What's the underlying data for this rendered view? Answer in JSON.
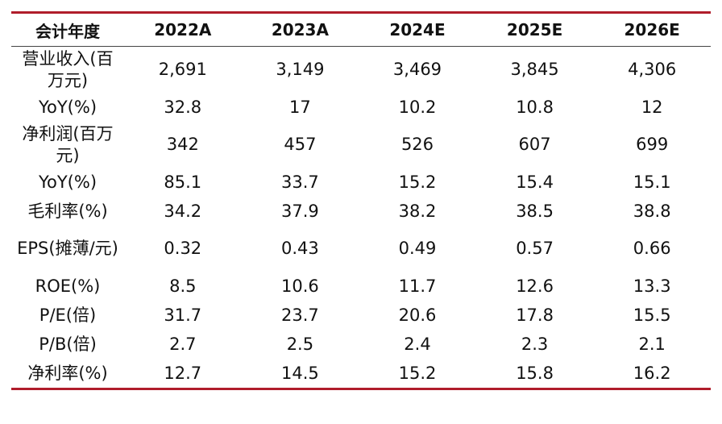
{
  "table": {
    "headers": [
      "会计年度",
      "2022A",
      "2023A",
      "2024E",
      "2025E",
      "2026E"
    ],
    "rows": [
      {
        "label": "营业收入(百万元)",
        "values": [
          "2,691",
          "3,149",
          "3,469",
          "3,845",
          "4,306"
        ],
        "size": "tall"
      },
      {
        "label": "YoY(%)",
        "values": [
          "32.8",
          "17",
          "10.2",
          "10.8",
          "12"
        ],
        "size": "short"
      },
      {
        "label": "净利润(百万元)",
        "values": [
          "342",
          "457",
          "526",
          "607",
          "699"
        ],
        "size": "tall"
      },
      {
        "label": "YoY(%)",
        "values": [
          "85.1",
          "33.7",
          "15.2",
          "15.4",
          "15.1"
        ],
        "size": "short"
      },
      {
        "label": "毛利率(%)",
        "values": [
          "34.2",
          "37.9",
          "38.2",
          "38.5",
          "38.8"
        ],
        "size": "short"
      },
      {
        "label": "EPS(摊薄/元)",
        "values": [
          "0.32",
          "0.43",
          "0.49",
          "0.57",
          "0.66"
        ],
        "size": "tall"
      },
      {
        "label": "ROE(%)",
        "values": [
          "8.5",
          "10.6",
          "11.7",
          "12.6",
          "13.3"
        ],
        "size": "short"
      },
      {
        "label": "P/E(倍)",
        "values": [
          "31.7",
          "23.7",
          "20.6",
          "17.8",
          "15.5"
        ],
        "size": "short"
      },
      {
        "label": "P/B(倍)",
        "values": [
          "2.7",
          "2.5",
          "2.4",
          "2.3",
          "2.1"
        ],
        "size": "short"
      },
      {
        "label": "净利率(%)",
        "values": [
          "12.7",
          "14.5",
          "15.2",
          "15.8",
          "16.2"
        ],
        "size": "short"
      }
    ]
  },
  "colors": {
    "rule": "#b01d2b"
  }
}
